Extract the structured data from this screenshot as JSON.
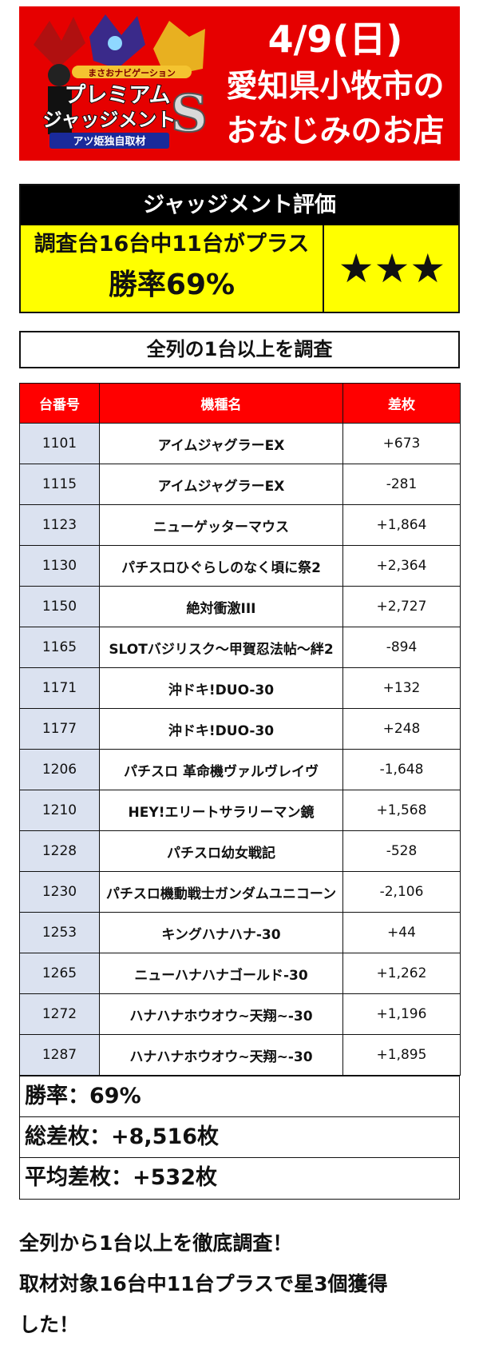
{
  "banner": {
    "logo_top": "まさおナビゲーション",
    "logo_main1": "プレミアム",
    "logo_main2": "ジャッジメント",
    "logo_badge": "アツ姫独自取材",
    "logo_s": "S",
    "date": "4/9(日)",
    "line2": "愛知県小牧市の",
    "line3": "おなじみのお店"
  },
  "judgment": {
    "header": "ジャッジメント評価",
    "line1": "調査台16台中11台がプラス",
    "line2": "勝率69%",
    "stars": "★★★"
  },
  "survey_label": "全列の1台以上を調査",
  "table": {
    "headers": [
      "台番号",
      "機種名",
      "差枚"
    ],
    "rows": [
      {
        "num": "1101",
        "model": "アイムジャグラーEX",
        "diff": "+673"
      },
      {
        "num": "1115",
        "model": "アイムジャグラーEX",
        "diff": "-281"
      },
      {
        "num": "1123",
        "model": "ニューゲッターマウス",
        "diff": "+1,864"
      },
      {
        "num": "1130",
        "model": "パチスロひぐらしのなく頃に祭2",
        "diff": "+2,364"
      },
      {
        "num": "1150",
        "model": "絶対衝激III",
        "diff": "+2,727"
      },
      {
        "num": "1165",
        "model": "SLOTバジリスク～甲賀忍法帖～絆2",
        "diff": "-894"
      },
      {
        "num": "1171",
        "model": "沖ドキ!DUO-30",
        "diff": "+132"
      },
      {
        "num": "1177",
        "model": "沖ドキ!DUO-30",
        "diff": "+248"
      },
      {
        "num": "1206",
        "model": "パチスロ 革命機ヴァルヴレイヴ",
        "diff": "-1,648"
      },
      {
        "num": "1210",
        "model": "HEY!エリートサラリーマン鏡",
        "diff": "+1,568"
      },
      {
        "num": "1228",
        "model": "パチスロ幼女戦記",
        "diff": "-528"
      },
      {
        "num": "1230",
        "model": "パチスロ機動戦士ガンダムユニコーン",
        "diff": "-2,106"
      },
      {
        "num": "1253",
        "model": "キングハナハナ-30",
        "diff": "+44"
      },
      {
        "num": "1265",
        "model": "ニューハナハナゴールド-30",
        "diff": "+1,262"
      },
      {
        "num": "1272",
        "model": "ハナハナホウオウ~天翔~-30",
        "diff": "+1,196"
      },
      {
        "num": "1287",
        "model": "ハナハナホウオウ~天翔~-30",
        "diff": "+1,895"
      }
    ]
  },
  "summary": {
    "win_rate": "勝率：69%",
    "total": "総差枚：+8,516枚",
    "average": "平均差枚：+532枚"
  },
  "footer": {
    "line1": "全列から1台以上を徹底調査！",
    "line2": "取材対象16台中11台プラスで星3個獲得",
    "line3": "した！"
  },
  "colors": {
    "banner_red": "#e60000",
    "header_red": "#ff0000",
    "judge_yellow": "#ffff00",
    "num_cell": "#dbe2f0"
  }
}
